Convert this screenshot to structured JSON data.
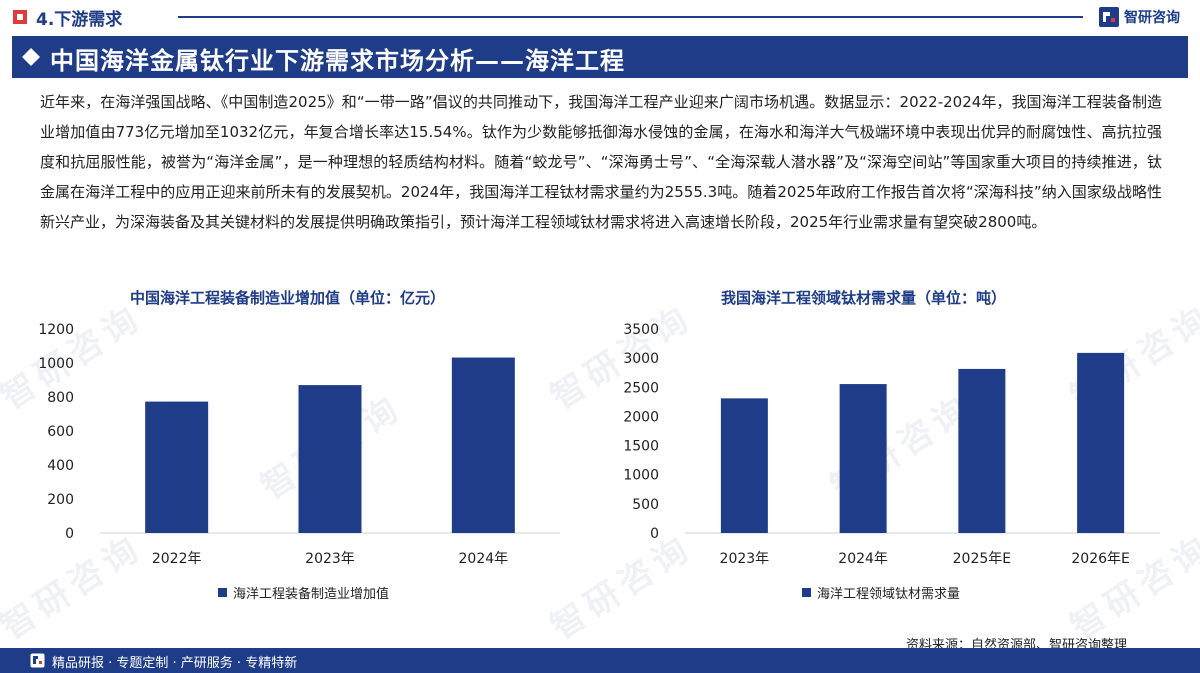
{
  "header": {
    "section_title": "4.下游需求",
    "brand_name": "智研咨询"
  },
  "banner": {
    "title": "中国海洋金属钛行业下游需求市场分析——海洋工程"
  },
  "intro_text": "近年来，在海洋强国战略、《中国制造2025》和“一带一路”倡议的共同推动下，我国海洋工程产业迎来广阔市场机遇。数据显示：2022-2024年，我国海洋工程装备制造业增加值由773亿元增加至1032亿元，年复合增长率达15.54%。钛作为少数能够抵御海水侵蚀的金属，在海水和海洋大气极端环境中表现出优异的耐腐蚀性、高抗拉强度和抗屈服性能，被誉为“海洋金属”，是一种理想的轻质结构材料。随着“蛟龙号”、“深海勇士号”、“全海深载人潜水器”及“深海空间站”等国家重大项目的持续推进，钛金属在海洋工程中的应用正迎来前所未有的发展契机。2024年，我国海洋工程钛材需求量约为2555.3吨。随着2025年政府工作报告首次将“深海科技”纳入国家级战略性新兴产业，为深海装备及其关键材料的发展提供明确政策指引，预计海洋工程领域钛材需求将进入高速增长阶段，2025年行业需求量有望突破2800吨。",
  "chart_data": [
    {
      "type": "bar",
      "title": "中国海洋工程装备制造业增加值（单位：亿元）",
      "categories": [
        "2022年",
        "2023年",
        "2024年"
      ],
      "series": [
        {
          "name": "海洋工程装备制造业增加值",
          "values": [
            773,
            870,
            1032
          ]
        }
      ],
      "ylim": [
        0,
        1200
      ],
      "yticks": [
        0,
        200,
        400,
        600,
        800,
        1000,
        1200
      ],
      "grid": false,
      "legend": "bottom-left",
      "color": "#1f3c88"
    },
    {
      "type": "bar",
      "title": "我国海洋工程领域钛材需求量（单位：吨）",
      "categories": [
        "2023年",
        "2024年",
        "2025年E",
        "2026年E"
      ],
      "series": [
        {
          "name": "海洋工程领域钛材需求量",
          "values": [
            2310,
            2555.3,
            2815,
            3090
          ]
        }
      ],
      "ylim": [
        0,
        3500
      ],
      "yticks": [
        0,
        500,
        1000,
        1500,
        2000,
        2500,
        3000,
        3500
      ],
      "grid": false,
      "legend": "bottom-left",
      "color": "#1f3c88"
    }
  ],
  "source_text": "资料来源：自然资源部、智研咨询整理",
  "footer": {
    "tagline": "精品研报 · 专题定制 · 产研服务 · 专精特新"
  },
  "watermark_text": "智研咨询",
  "colors": {
    "primary": "#1f3c88",
    "accent": "#e03a3a"
  }
}
